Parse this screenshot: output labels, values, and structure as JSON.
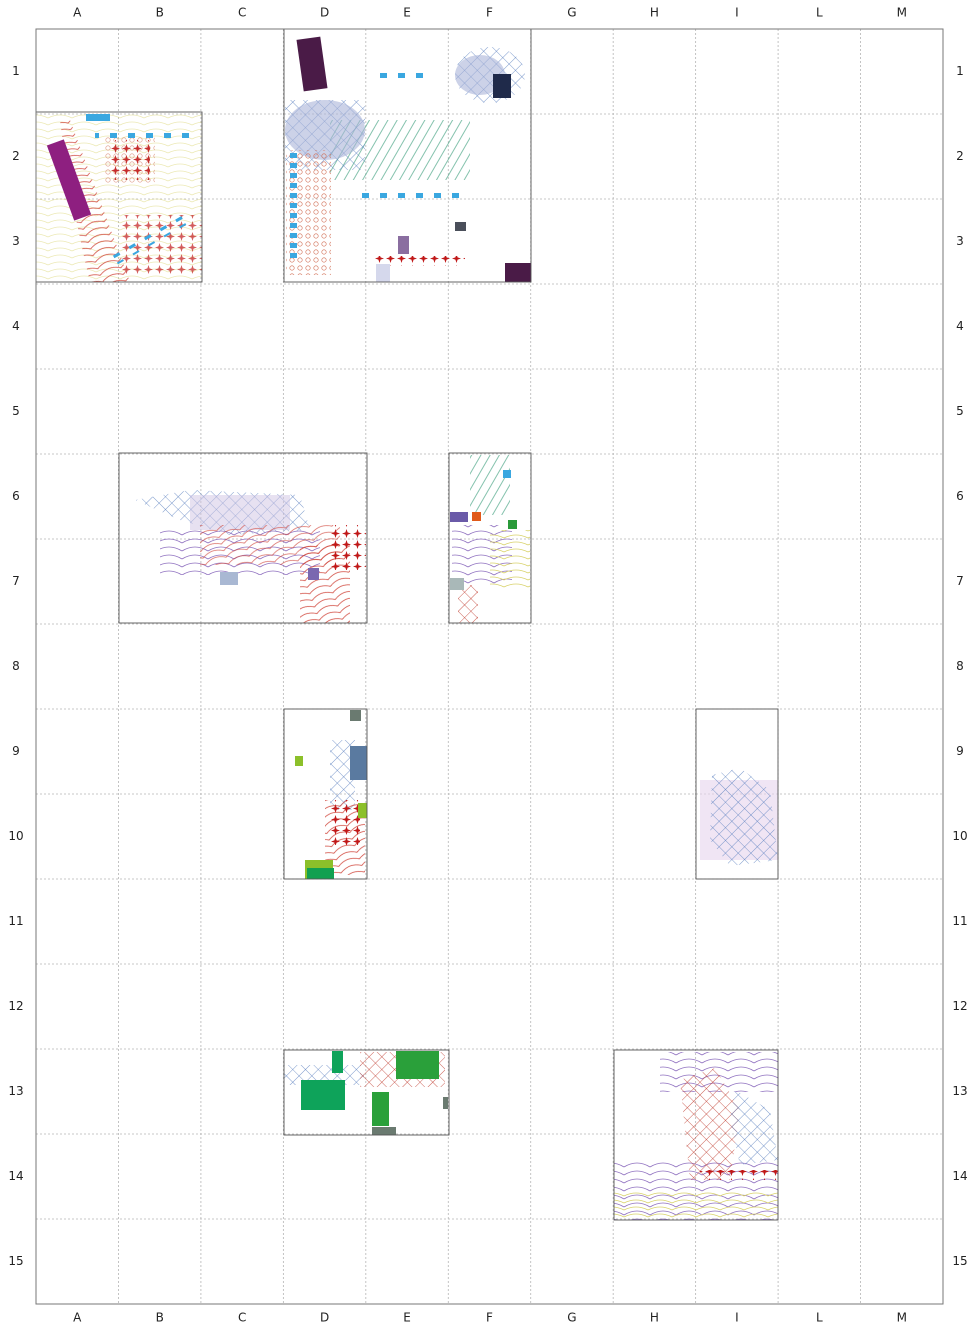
{
  "columns": [
    "A",
    "B",
    "C",
    "D",
    "E",
    "F",
    "G",
    "H",
    "I",
    "L",
    "M"
  ],
  "rows": [
    "1",
    "2",
    "3",
    "4",
    "5",
    "6",
    "7",
    "8",
    "9",
    "10",
    "11",
    "12",
    "13",
    "14",
    "15"
  ]
}
